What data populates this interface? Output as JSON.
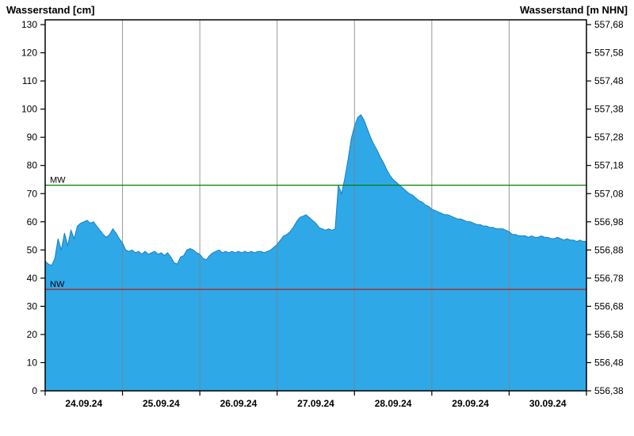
{
  "chart_data": {
    "type": "area",
    "title_left": "Wasserstand [cm]",
    "title_right": "Wasserstand [m NHN]",
    "x_tick_labels": [
      "24.09.24",
      "25.09.24",
      "26.09.24",
      "27.09.24",
      "28.09.24",
      "29.09.24",
      "30.09.24"
    ],
    "days": 7,
    "points_per_day": 24,
    "left_axis": {
      "label": "Wasserstand [cm]",
      "min": 0,
      "max": 130,
      "step": 10,
      "plot_max": 131.7
    },
    "right_axis": {
      "label": "Wasserstand [m NHN]",
      "min": 556.38,
      "max": 557.68,
      "step": 0.1,
      "decimals": 2,
      "decimal_separator": ",",
      "cm_to_m_offset": 556.38
    },
    "reference_lines": [
      {
        "label": "MW",
        "value_cm": 73,
        "color": "#008000"
      },
      {
        "label": "NW",
        "value_cm": 36,
        "color": "#A52A2A"
      }
    ],
    "series": [
      {
        "name": "Wasserstand",
        "unit": "cm",
        "values": [
          46,
          45,
          44.5,
          47,
          54,
          50,
          56,
          51.5,
          57,
          54,
          58.5,
          59.5,
          60,
          60.5,
          59.5,
          60,
          58.5,
          57,
          55.5,
          54.5,
          55.5,
          57.5,
          56,
          54,
          52.5,
          50,
          49.5,
          50,
          49,
          49.5,
          48.5,
          49.5,
          48.5,
          49,
          49.5,
          48.5,
          49,
          48,
          49,
          47.5,
          45.5,
          45,
          47.5,
          48,
          50,
          50.5,
          50,
          49,
          48.5,
          47,
          46.5,
          48,
          49,
          49.5,
          50,
          49,
          49.5,
          49,
          49.5,
          49,
          49.5,
          49,
          49.5,
          49,
          49.5,
          49,
          49.5,
          49.5,
          49,
          49.5,
          50,
          51,
          52,
          53.5,
          55,
          55.5,
          56.5,
          58,
          60,
          61.5,
          62,
          62.5,
          61.5,
          60.5,
          59.5,
          58,
          57.5,
          57,
          57.5,
          57,
          57.5,
          73,
          70,
          75.5,
          82,
          89.5,
          94,
          97,
          98,
          96,
          93,
          90,
          87.5,
          85.5,
          83,
          81,
          78.5,
          76.5,
          75,
          74,
          73,
          72,
          71,
          70,
          69.5,
          68.5,
          67.5,
          67,
          66,
          65.5,
          64.5,
          64,
          63.5,
          63,
          62.5,
          62.5,
          62,
          61.5,
          61,
          61,
          60.5,
          60,
          60,
          59.5,
          59,
          59,
          58.5,
          58.5,
          58,
          58,
          57.5,
          57.5,
          57.5,
          57,
          56.5,
          55.5,
          55.5,
          55,
          55,
          55,
          54.5,
          55,
          54.5,
          54.5,
          55,
          54.5,
          54.5,
          54,
          54,
          54.5,
          54,
          53.5,
          54,
          53.5,
          53.5,
          53,
          53.5,
          53,
          53
        ]
      }
    ],
    "colors": {
      "area_fill": "#2FA8E8",
      "area_stroke": "#1A7FC4",
      "grid": "#808080",
      "frame": "#000000",
      "text": "#000000",
      "background": "#FFFFFF"
    }
  }
}
